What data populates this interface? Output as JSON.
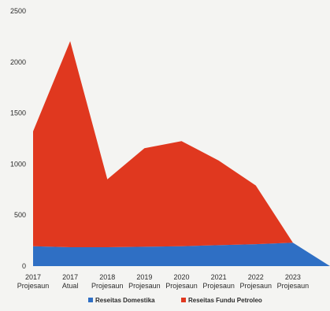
{
  "chart_data": {
    "type": "area",
    "stacked": true,
    "categories": [
      [
        "2017",
        "Projesaun"
      ],
      [
        "2017",
        "Atual"
      ],
      [
        "2018",
        "Projesaun"
      ],
      [
        "2019",
        "Projesaun"
      ],
      [
        "2020",
        "Projesaun"
      ],
      [
        "2021",
        "Projesaun"
      ],
      [
        "2022",
        "Projesaun"
      ],
      [
        "2023",
        "Projesaun"
      ],
      [
        "",
        ""
      ]
    ],
    "series": [
      {
        "name": "Reseitas Domestika",
        "color": "#2f6fc4",
        "values": [
          195,
          185,
          185,
          190,
          195,
          205,
          215,
          230,
          0
        ]
      },
      {
        "name": "Reseitas Fundu Petroleo",
        "color": "#e0381f",
        "values": [
          1125,
          2020,
          665,
          965,
          1030,
          830,
          575,
          0,
          0
        ]
      }
    ],
    "yticks": [
      0,
      500,
      1000,
      1500,
      2000,
      2500
    ],
    "ylim": [
      0,
      2500
    ],
    "legend_position": "bottom",
    "grid": false
  }
}
